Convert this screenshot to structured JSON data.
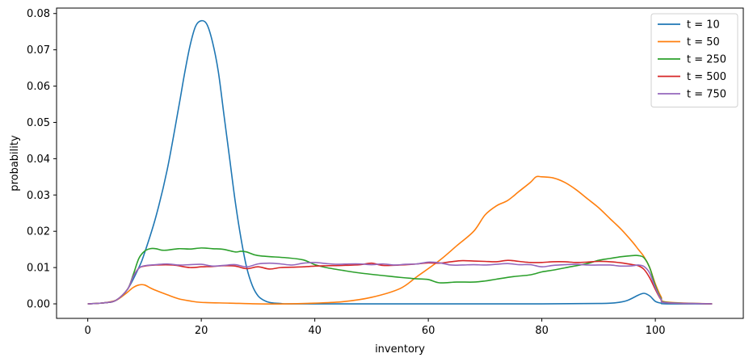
{
  "chart_data": {
    "type": "line",
    "title": "",
    "xlabel": "inventory",
    "ylabel": "probability",
    "xlim": [
      -5.5,
      115.5
    ],
    "ylim": [
      -0.004,
      0.0815
    ],
    "xticks": [
      0,
      20,
      40,
      60,
      80,
      100
    ],
    "yticks": [
      0.0,
      0.01,
      0.02,
      0.03,
      0.04,
      0.05,
      0.06,
      0.07,
      0.08
    ],
    "xtick_labels": [
      "0",
      "20",
      "40",
      "60",
      "80",
      "100"
    ],
    "ytick_labels": [
      "0.00",
      "0.01",
      "0.02",
      "0.03",
      "0.04",
      "0.05",
      "0.06",
      "0.07",
      "0.08"
    ],
    "grid": false,
    "legend_position": "top-right",
    "series": [
      {
        "name": "t = 10",
        "color": "#1f77b4",
        "x": [
          0,
          3,
          5,
          7,
          9,
          10,
          12,
          14,
          16,
          17,
          18,
          19,
          20,
          21,
          22,
          23,
          24,
          25,
          26,
          27,
          28,
          29,
          30,
          31,
          32,
          33,
          34,
          35,
          40,
          60,
          80,
          90,
          93,
          95,
          97,
          98,
          99,
          100,
          101,
          102,
          110
        ],
        "y": [
          0.0,
          0.0003,
          0.001,
          0.004,
          0.01,
          0.014,
          0.024,
          0.037,
          0.054,
          0.063,
          0.071,
          0.0765,
          0.078,
          0.077,
          0.072,
          0.064,
          0.052,
          0.04,
          0.028,
          0.018,
          0.01,
          0.005,
          0.0022,
          0.001,
          0.0004,
          0.0002,
          0.0001,
          0.0,
          0.0,
          0.0,
          0.0,
          0.0001,
          0.0003,
          0.0009,
          0.0024,
          0.0029,
          0.0022,
          0.0007,
          0.0002,
          0.0,
          0.0
        ]
      },
      {
        "name": "t = 50",
        "color": "#ff7f0e",
        "x": [
          0,
          3,
          5,
          6,
          7,
          8,
          9,
          10,
          11,
          12,
          14,
          16,
          18,
          20,
          25,
          30,
          35,
          40,
          45,
          50,
          55,
          58,
          62,
          65,
          68,
          70,
          72,
          74,
          76,
          78,
          79,
          80,
          82,
          84,
          86,
          88,
          90,
          92,
          94,
          96,
          97,
          98,
          99,
          100,
          101,
          102,
          110
        ],
        "y": [
          0.0,
          0.0003,
          0.001,
          0.002,
          0.0032,
          0.0045,
          0.0052,
          0.0052,
          0.0044,
          0.0037,
          0.0025,
          0.0014,
          0.0008,
          0.0004,
          0.0002,
          0.0,
          0.0,
          0.0002,
          0.0006,
          0.0018,
          0.0042,
          0.0075,
          0.012,
          0.016,
          0.02,
          0.0245,
          0.027,
          0.0285,
          0.031,
          0.0335,
          0.035,
          0.035,
          0.0347,
          0.0335,
          0.0315,
          0.029,
          0.0265,
          0.0235,
          0.0205,
          0.017,
          0.015,
          0.013,
          0.01,
          0.0055,
          0.002,
          0.0005,
          0.0
        ]
      },
      {
        "name": "t = 250",
        "color": "#2ca02c",
        "x": [
          0,
          3,
          5,
          7,
          8,
          9,
          10,
          11,
          12,
          13,
          14,
          16,
          18,
          20,
          22,
          24,
          26,
          27,
          28,
          30,
          35,
          38,
          40,
          42,
          45,
          48,
          52,
          55,
          58,
          60,
          62,
          65,
          68,
          70,
          72,
          75,
          78,
          80,
          82,
          85,
          88,
          90,
          92,
          94,
          96,
          97,
          98,
          99,
          100,
          101,
          102,
          110
        ],
        "y": [
          0.0,
          0.0003,
          0.001,
          0.004,
          0.008,
          0.0125,
          0.0145,
          0.0152,
          0.0152,
          0.0148,
          0.0148,
          0.0152,
          0.0151,
          0.0154,
          0.0152,
          0.015,
          0.0143,
          0.0145,
          0.0143,
          0.0133,
          0.0127,
          0.0121,
          0.0108,
          0.01,
          0.0092,
          0.0085,
          0.0078,
          0.0073,
          0.0069,
          0.0067,
          0.0058,
          0.006,
          0.006,
          0.0063,
          0.0068,
          0.0075,
          0.008,
          0.0088,
          0.0093,
          0.0102,
          0.0111,
          0.012,
          0.0125,
          0.013,
          0.0133,
          0.0133,
          0.0127,
          0.01,
          0.005,
          0.0015,
          0.0004,
          0.0
        ]
      },
      {
        "name": "t = 500",
        "color": "#d62728",
        "x": [
          0,
          3,
          5,
          7,
          8,
          9,
          10,
          12,
          15,
          18,
          20,
          22,
          24,
          26,
          28,
          30,
          32,
          34,
          36,
          38,
          40,
          42,
          45,
          48,
          50,
          52,
          55,
          58,
          60,
          62,
          64,
          66,
          68,
          70,
          72,
          74,
          76,
          78,
          80,
          82,
          84,
          86,
          88,
          90,
          92,
          94,
          96,
          97,
          98,
          99,
          100,
          101,
          102,
          110
        ],
        "y": [
          0.0,
          0.0003,
          0.001,
          0.004,
          0.0075,
          0.0098,
          0.0104,
          0.0107,
          0.0107,
          0.01,
          0.0102,
          0.0103,
          0.0105,
          0.0104,
          0.0097,
          0.0102,
          0.0096,
          0.01,
          0.0101,
          0.0102,
          0.0104,
          0.0105,
          0.0106,
          0.0108,
          0.0112,
          0.0106,
          0.0107,
          0.011,
          0.0113,
          0.0112,
          0.0116,
          0.0119,
          0.0118,
          0.0117,
          0.0116,
          0.012,
          0.0117,
          0.0114,
          0.0114,
          0.0116,
          0.0116,
          0.0114,
          0.0115,
          0.0117,
          0.0116,
          0.0113,
          0.0108,
          0.0105,
          0.0095,
          0.0072,
          0.004,
          0.0012,
          0.0003,
          0.0
        ]
      },
      {
        "name": "t = 750",
        "color": "#9467bd",
        "x": [
          0,
          3,
          5,
          7,
          8,
          9,
          10,
          12,
          14,
          16,
          18,
          20,
          22,
          24,
          26,
          28,
          30,
          32,
          34,
          36,
          38,
          40,
          42,
          44,
          46,
          48,
          50,
          52,
          54,
          56,
          58,
          60,
          62,
          64,
          66,
          68,
          70,
          72,
          74,
          76,
          78,
          80,
          82,
          84,
          86,
          88,
          90,
          92,
          94,
          96,
          97,
          98,
          99,
          100,
          101,
          102,
          110
        ],
        "y": [
          0.0,
          0.0003,
          0.001,
          0.004,
          0.0075,
          0.0098,
          0.0105,
          0.0108,
          0.011,
          0.0107,
          0.0108,
          0.0109,
          0.0104,
          0.0106,
          0.0108,
          0.0102,
          0.011,
          0.0112,
          0.011,
          0.0107,
          0.0112,
          0.0114,
          0.0111,
          0.0109,
          0.011,
          0.011,
          0.0108,
          0.011,
          0.0107,
          0.0109,
          0.011,
          0.0115,
          0.0113,
          0.0107,
          0.0107,
          0.0108,
          0.0107,
          0.0109,
          0.0111,
          0.0108,
          0.0108,
          0.0102,
          0.0106,
          0.0108,
          0.0109,
          0.0107,
          0.0107,
          0.0107,
          0.0104,
          0.0105,
          0.0107,
          0.0103,
          0.0085,
          0.0045,
          0.0013,
          0.0003,
          0.0
        ]
      }
    ]
  }
}
